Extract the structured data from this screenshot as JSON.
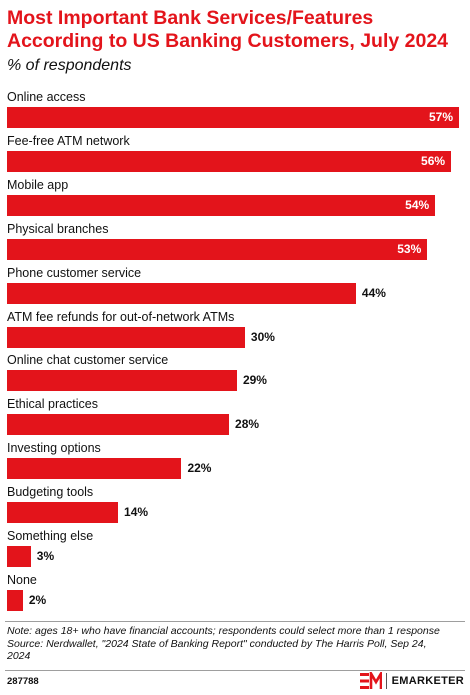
{
  "header": {
    "title": "Most Important Bank Services/Features According to US Banking Customers, July 2024",
    "subtitle": "% of respondents"
  },
  "chart_data": {
    "type": "bar",
    "orientation": "horizontal",
    "title": "Most Important Bank Services/Features According to US Banking Customers, July 2024",
    "subtitle": "% of respondents",
    "categories": [
      "Online access",
      "Fee-free ATM network",
      "Mobile app",
      "Physical branches",
      "Phone customer service",
      "ATM fee refunds for out-of-network ATMs",
      "Online chat customer service",
      "Ethical practices",
      "Investing options",
      "Budgeting tools",
      "Something else",
      "None"
    ],
    "values": [
      57,
      56,
      54,
      53,
      44,
      30,
      29,
      28,
      22,
      14,
      3,
      2
    ],
    "value_labels": [
      "57%",
      "56%",
      "54%",
      "53%",
      "44%",
      "30%",
      "29%",
      "28%",
      "22%",
      "14%",
      "3%",
      "2%"
    ],
    "xlim": [
      0,
      57
    ],
    "grid": false,
    "legend": "none",
    "bar_color": "#e3141b"
  },
  "footer": {
    "note_lines": [
      "Note: ages 18+ who have financial accounts; respondents could select more than 1 response",
      "Source: Nerdwallet, \"2024 State of Banking Report\" conducted by The Harris Poll, Sep 24,",
      "2024"
    ],
    "chart_id": "287788",
    "brand": "EMARKETER",
    "brand_icon": "emarketer-logo-icon"
  },
  "colors": {
    "accent": "#e3141b",
    "text": "#111111",
    "divider": "#9e9e9e"
  }
}
